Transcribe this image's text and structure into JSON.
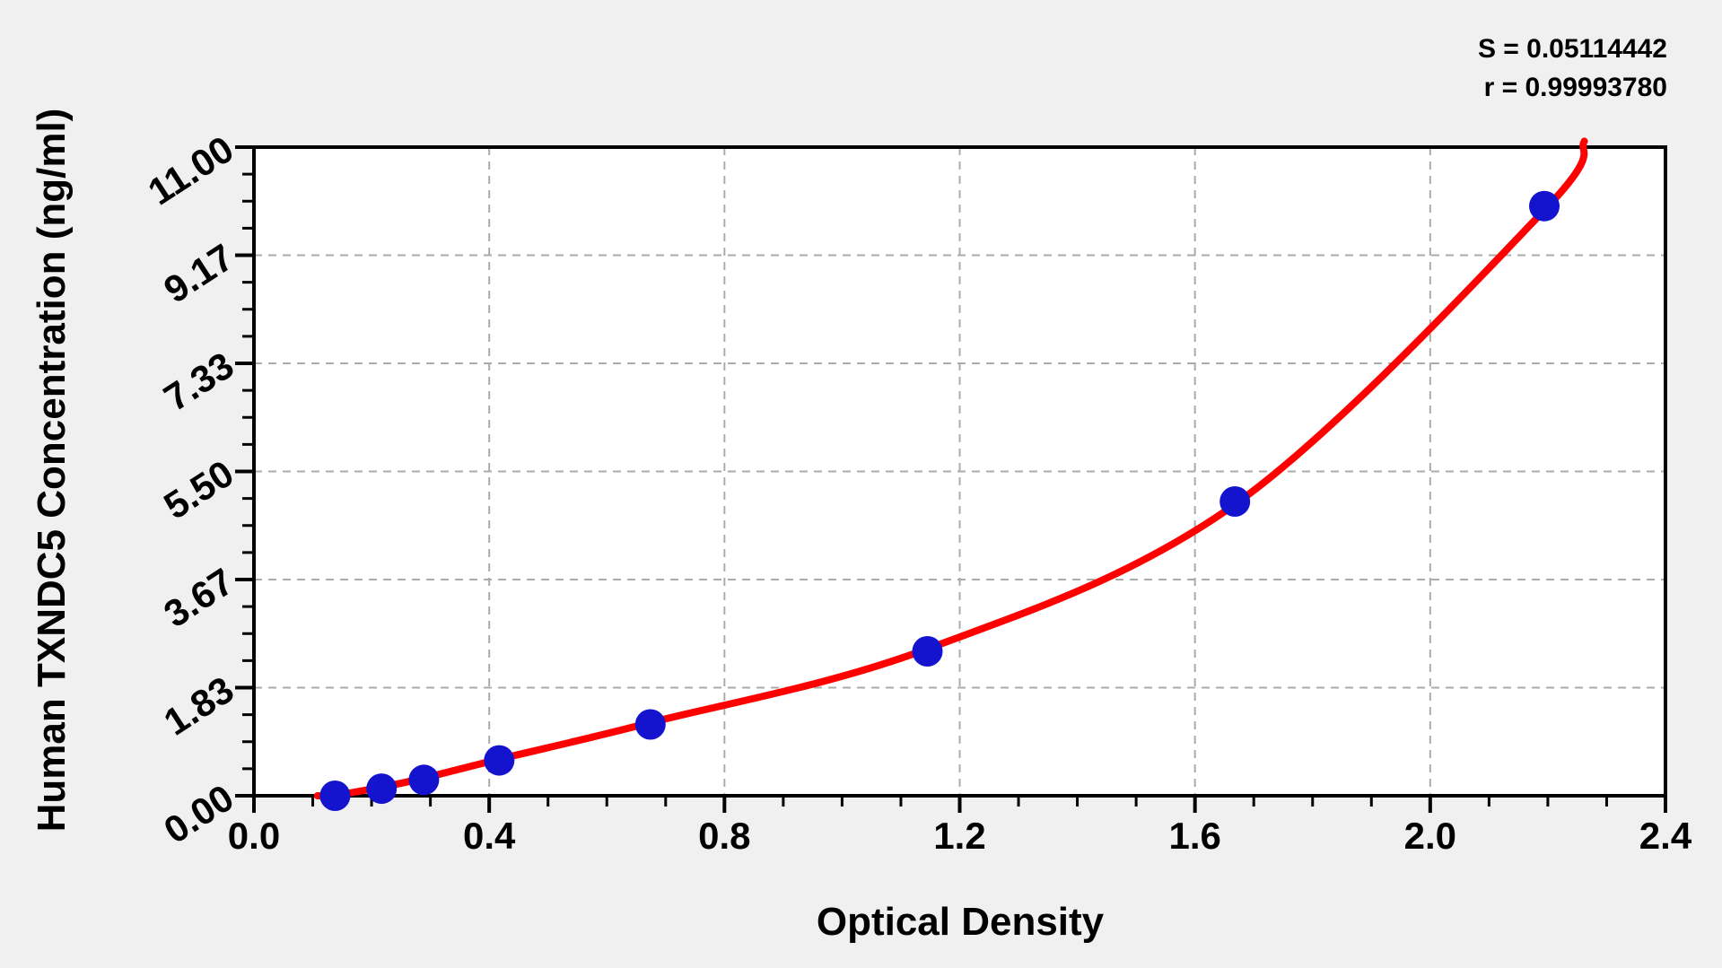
{
  "page": {
    "background_color": "#f0f0f0",
    "plot_background_color": "#ffffff",
    "frame_color": "#000000"
  },
  "chart_data": {
    "type": "scatter",
    "title": "",
    "xlabel": "Optical Density",
    "ylabel": "Human TXNDC5 Concentration (ng/ml)",
    "xlim": [
      0.0,
      2.4
    ],
    "ylim": [
      0.0,
      11.0
    ],
    "x_ticks": [
      {
        "label": "0.0",
        "value": 0.0
      },
      {
        "label": "0.4",
        "value": 0.4
      },
      {
        "label": "0.8",
        "value": 0.8
      },
      {
        "label": "1.2",
        "value": 1.2
      },
      {
        "label": "1.6",
        "value": 1.6
      },
      {
        "label": "2.0",
        "value": 2.0
      },
      {
        "label": "2.4",
        "value": 2.4
      }
    ],
    "x_minor_step": 0.1,
    "y_ticks": [
      {
        "label": "0.00",
        "value": 0.0
      },
      {
        "label": "1.83",
        "value": 1.8333
      },
      {
        "label": "3.67",
        "value": 3.6667
      },
      {
        "label": "5.50",
        "value": 5.5
      },
      {
        "label": "7.33",
        "value": 7.3333
      },
      {
        "label": "9.17",
        "value": 9.1667
      },
      {
        "label": "11.00",
        "value": 11.0
      }
    ],
    "y_minor_per_major": 4,
    "grid": {
      "show": true,
      "style": "dashed",
      "color": "#ababab",
      "dash": "9 7",
      "width": 2
    },
    "annotations": [
      "S = 0.05114442",
      "r = 0.99993780"
    ],
    "series": [
      {
        "name": "standard-points",
        "type": "scatter",
        "marker": "circle",
        "marker_radius": 17,
        "color": "#1414ce",
        "x": [
          0.138,
          0.217,
          0.289,
          0.417,
          0.674,
          1.145,
          1.668,
          2.194
        ],
        "y": [
          0.0,
          0.12,
          0.27,
          0.6,
          1.21,
          2.45,
          4.99,
          10.0
        ]
      },
      {
        "name": "fitted-curve",
        "type": "line",
        "color": "#ff0000",
        "width": 8,
        "points": [
          [
            0.108,
            0.0
          ],
          [
            0.138,
            0.01
          ],
          [
            0.217,
            0.145
          ],
          [
            0.289,
            0.3
          ],
          [
            0.417,
            0.62
          ],
          [
            0.674,
            1.24
          ],
          [
            1.145,
            2.49
          ],
          [
            1.668,
            4.94
          ],
          [
            2.194,
            9.93
          ],
          [
            2.262,
            11.1
          ]
        ]
      }
    ]
  }
}
